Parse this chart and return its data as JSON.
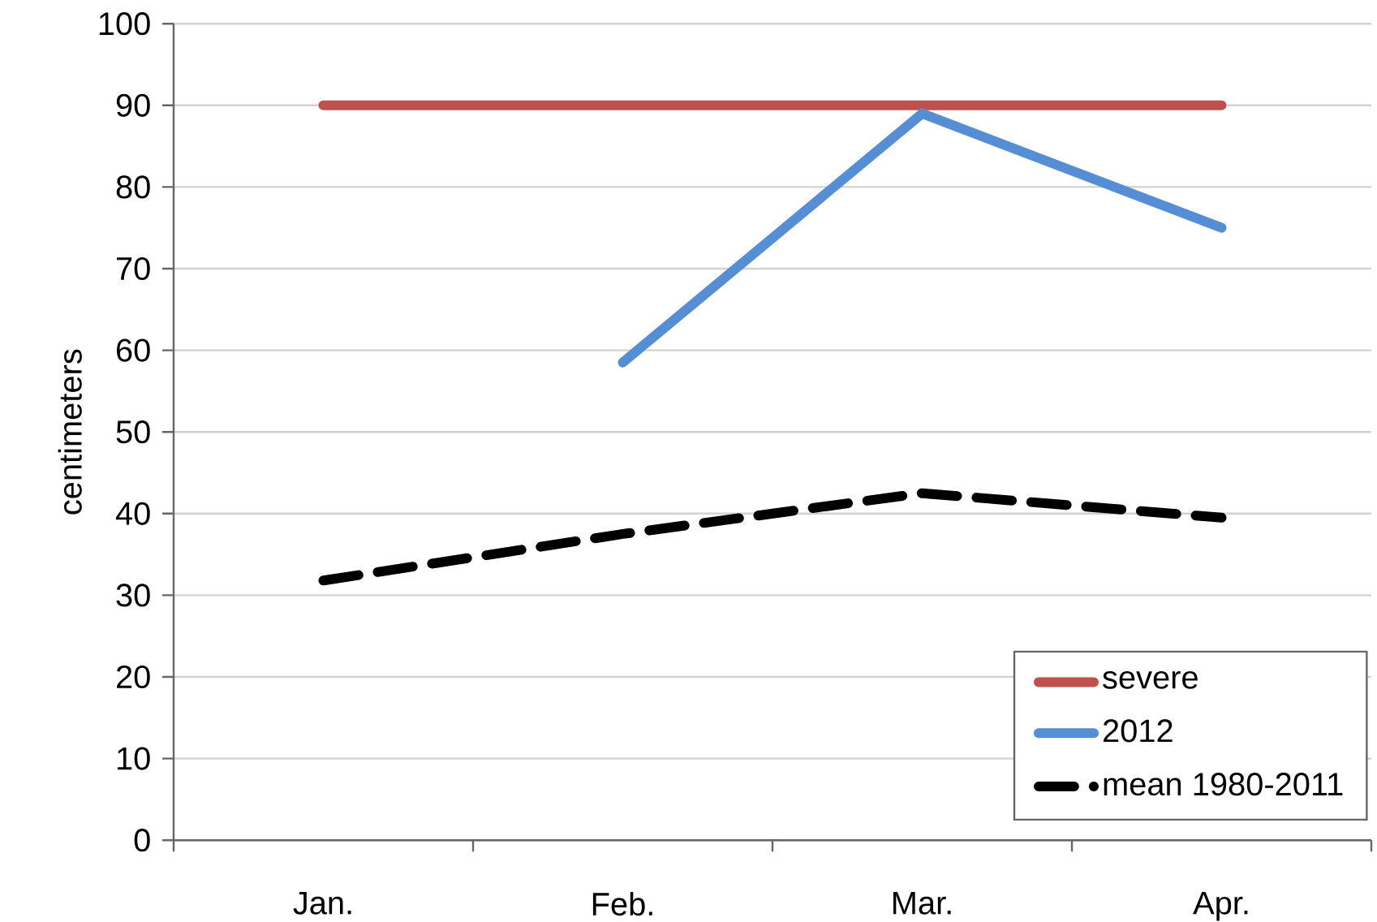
{
  "chart_data": {
    "type": "line",
    "ylabel": "centimeters",
    "categories": [
      "Jan.",
      "Feb.",
      "Mar.",
      "Apr."
    ],
    "series": [
      {
        "name": "severe",
        "color": "#c0504d",
        "values": [
          90,
          90,
          90,
          90
        ],
        "line_style": "solid"
      },
      {
        "name": "2012",
        "color": "#558ed5",
        "values": [
          null,
          58.5,
          89,
          75
        ],
        "line_style": "solid"
      },
      {
        "name": "mean 1980-2011",
        "color": "#000000",
        "values": [
          31.8,
          37.5,
          42.5,
          39.5
        ],
        "line_style": "dashed"
      }
    ],
    "ylim": [
      0,
      100
    ],
    "yticks": [
      0,
      10,
      20,
      30,
      40,
      50,
      60,
      70,
      80,
      90,
      100
    ],
    "grid": "y",
    "legend": "bottom right",
    "marker": "none"
  }
}
